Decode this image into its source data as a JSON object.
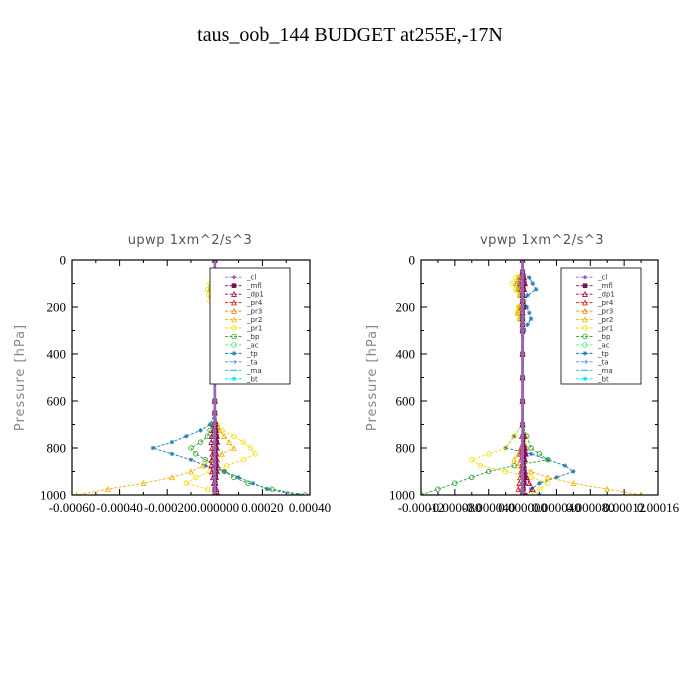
{
  "title": "taus_oob_144  BUDGET at255E,-17N",
  "chart_data": [
    {
      "type": "line",
      "title": "upwp   1xm^2/s^3",
      "ylabel": "Pressure [hPa]",
      "xlabel": "",
      "xlim": [
        -0.0006,
        0.0004
      ],
      "ylim": [
        1000,
        0
      ],
      "xticks": [
        "-0.00060",
        "-0.00040",
        "-0.00020",
        "0.000000",
        "0.00020",
        "0.00040"
      ],
      "xtick_values": [
        -0.0006,
        -0.0004,
        -0.0002,
        0.0,
        0.0002,
        0.0004
      ],
      "yticks": [
        0,
        200,
        400,
        600,
        800,
        1000
      ],
      "legend_position": "upper-right",
      "levels": [
        0,
        50,
        100,
        125,
        150,
        175,
        200,
        250,
        300,
        400,
        500,
        600,
        650,
        700,
        725,
        750,
        775,
        800,
        825,
        850,
        875,
        900,
        925,
        950,
        975,
        1000
      ],
      "series": [
        {
          "name": "_cl",
          "color": "#9467bd",
          "marker": "diamond",
          "values": [
            0,
            0,
            0,
            0,
            0,
            0,
            0,
            0,
            0,
            0,
            0,
            0,
            0,
            0,
            0,
            0,
            0,
            0,
            0,
            0,
            0,
            0,
            0,
            0,
            0,
            0
          ]
        },
        {
          "name": "_mfl",
          "color": "#7a0f4d",
          "marker": "square",
          "values": [
            0,
            0,
            3e-06,
            4e-06,
            3e-06,
            2e-06,
            1e-06,
            0,
            0,
            0,
            0,
            0,
            0,
            3e-06,
            5e-06,
            7e-06,
            7e-06,
            5e-06,
            3e-06,
            4e-06,
            6e-06,
            6e-06,
            4e-06,
            2e-06,
            0,
            0
          ]
        },
        {
          "name": "_dp1",
          "color": "#b0003a",
          "marker": "triangle",
          "values": [
            0,
            0,
            -5e-06,
            -8e-06,
            -6e-06,
            -4e-06,
            -2e-06,
            0,
            0,
            0,
            0,
            0,
            0,
            -5e-06,
            -8e-06,
            -1.2e-05,
            -1.5e-05,
            -1.2e-05,
            -1e-05,
            -1.3e-05,
            -1.5e-05,
            -1.2e-05,
            -8e-06,
            -4e-06,
            8e-06,
            1.5e-05
          ]
        },
        {
          "name": "_pr4",
          "color": "#d62728",
          "marker": "triangle",
          "values": [
            0,
            0,
            4e-06,
            6e-06,
            5e-06,
            3e-06,
            2e-06,
            0,
            0,
            0,
            0,
            0,
            0,
            4e-06,
            6e-06,
            1e-05,
            1.2e-05,
            1e-05,
            8e-06,
            1e-05,
            1.2e-05,
            1e-05,
            6e-06,
            3e-06,
            0,
            0
          ]
        },
        {
          "name": "_pr3",
          "color": "#ff7f0e",
          "marker": "triangle",
          "values": [
            0,
            0,
            0,
            0,
            0,
            0,
            0,
            0,
            0,
            0,
            0,
            0,
            0,
            0,
            0,
            0,
            0,
            0,
            0,
            0,
            0,
            0,
            0,
            0,
            0,
            0
          ]
        },
        {
          "name": "_pr2",
          "color": "#f4b400",
          "marker": "triangle",
          "values": [
            0,
            0,
            -1.5e-05,
            -2e-05,
            -1.5e-05,
            -1e-05,
            -5e-06,
            0,
            0,
            0,
            0,
            0,
            0,
            1e-05,
            2e-05,
            4e-05,
            6e-05,
            8e-05,
            3e-05,
            -1e-05,
            -5e-05,
            -0.0001,
            -0.00018,
            -0.0003,
            -0.00045,
            -0.00058
          ]
        },
        {
          "name": "_pr1",
          "color": "#f2e100",
          "marker": "circle",
          "values": [
            0,
            0,
            -2e-05,
            -3e-05,
            -2.5e-05,
            -2e-05,
            -1e-05,
            0,
            0,
            0,
            0,
            0,
            0,
            1e-05,
            3e-05,
            8e-05,
            0.00012,
            0.00015,
            0.00017,
            0.00012,
            5e-05,
            -2e-05,
            -8e-05,
            -0.00012,
            -3e-05,
            1e-05
          ]
        },
        {
          "name": "_bp",
          "color": "#2ca02c",
          "marker": "circle",
          "values": [
            0,
            0,
            -1e-05,
            -1.5e-05,
            -1.2e-05,
            -1e-05,
            -5e-06,
            0,
            0,
            0,
            0,
            0,
            0,
            -1e-05,
            -2e-05,
            -3e-05,
            -6e-05,
            -0.0001,
            -8e-05,
            -4e-05,
            0,
            4e-05,
            8e-05,
            0.00014,
            0.00024,
            0.00038
          ]
        },
        {
          "name": "_ac",
          "color": "#57e389",
          "marker": "circle",
          "values": [
            0,
            0,
            0,
            0,
            0,
            0,
            0,
            0,
            0,
            0,
            0,
            0,
            0,
            0,
            0,
            0,
            0,
            0,
            0,
            0,
            0,
            0,
            0,
            0,
            0,
            0
          ]
        },
        {
          "name": "_tp",
          "color": "#1f77b4",
          "marker": "star",
          "values": [
            0,
            0,
            4e-05,
            5e-05,
            4e-05,
            2e-05,
            -1e-05,
            0,
            0,
            0,
            0,
            0,
            0,
            -2e-05,
            -6e-05,
            -0.00012,
            -0.00018,
            -0.00026,
            -0.00018,
            -0.0001,
            -4e-05,
            4e-05,
            0.0001,
            0.00016,
            0.00022,
            0.00035
          ]
        },
        {
          "name": "_ta",
          "color": "#4a90d9",
          "marker": "arrow",
          "values": [
            0,
            0,
            0,
            0,
            0,
            0,
            0,
            0,
            0,
            0,
            0,
            0,
            0,
            0,
            0,
            0,
            0,
            0,
            0,
            0,
            0,
            0,
            0,
            0,
            0,
            0
          ]
        },
        {
          "name": "_ma",
          "color": "#17becf",
          "marker": "dash",
          "values": [
            0,
            0,
            0,
            0,
            0,
            0,
            0,
            0,
            0,
            0,
            0,
            0,
            0,
            0,
            0,
            0,
            0,
            0,
            0,
            0,
            0,
            0,
            0,
            0,
            0,
            0
          ]
        },
        {
          "name": "_bt",
          "color": "#00e5e5",
          "marker": "star",
          "values": [
            0,
            0,
            0,
            0,
            0,
            0,
            0,
            0,
            0,
            0,
            0,
            0,
            0,
            0,
            0,
            0,
            0,
            0,
            0,
            0,
            0,
            0,
            0,
            0,
            0,
            0
          ]
        }
      ]
    },
    {
      "type": "line",
      "title": "vpwp   1xm^2/s^3",
      "ylabel": "Pressure [hPa]",
      "xlabel": "",
      "xlim": [
        -0.00012,
        0.00016
      ],
      "ylim": [
        1000,
        0
      ],
      "xticks": [
        "-0.00012",
        "-0.000080",
        "-0.000040",
        "0.000000",
        "0.000040",
        "0.000080",
        "0.00012",
        "0.00016"
      ],
      "xtick_values": [
        -0.00012,
        -8e-05,
        -4e-05,
        0.0,
        4e-05,
        8e-05,
        0.00012,
        0.00016
      ],
      "yticks": [
        0,
        200,
        400,
        600,
        800,
        1000
      ],
      "legend_position": "upper-right",
      "levels": [
        0,
        50,
        75,
        100,
        125,
        150,
        175,
        200,
        225,
        250,
        275,
        300,
        400,
        500,
        600,
        700,
        750,
        800,
        825,
        850,
        875,
        900,
        925,
        950,
        975,
        1000
      ],
      "series": [
        {
          "name": "_cl",
          "color": "#9467bd",
          "marker": "diamond",
          "values": [
            0,
            0,
            0,
            0,
            0,
            0,
            0,
            0,
            0,
            0,
            0,
            0,
            0,
            0,
            0,
            0,
            0,
            0,
            0,
            0,
            0,
            0,
            0,
            0,
            0,
            0
          ]
        },
        {
          "name": "_mfl",
          "color": "#7a0f4d",
          "marker": "square",
          "values": [
            0,
            0,
            1e-06,
            2e-06,
            1e-06,
            0,
            0,
            1e-06,
            0,
            0,
            0,
            0,
            0,
            0,
            0,
            0,
            1e-06,
            2e-06,
            3e-06,
            2e-06,
            1e-06,
            2e-06,
            3e-06,
            2e-06,
            1e-06,
            0
          ]
        },
        {
          "name": "_dp1",
          "color": "#b0003a",
          "marker": "triangle",
          "values": [
            0,
            0,
            2e-06,
            3e-06,
            2e-06,
            1e-06,
            0,
            1e-06,
            0,
            0,
            0,
            0,
            0,
            0,
            0,
            0,
            2e-06,
            3e-06,
            4e-06,
            3e-06,
            2e-06,
            3e-06,
            5e-06,
            8e-06,
            1.2e-05,
            4e-06
          ]
        },
        {
          "name": "_pr4",
          "color": "#d62728",
          "marker": "triangle",
          "values": [
            0,
            0,
            -2e-06,
            -3e-06,
            -2e-06,
            0,
            0,
            -1e-06,
            0,
            0,
            0,
            0,
            0,
            0,
            0,
            0,
            -1e-06,
            -2e-06,
            -3e-06,
            -2e-06,
            -1e-06,
            -2e-06,
            -3e-06,
            -4e-06,
            -5e-06,
            0
          ]
        },
        {
          "name": "_pr3",
          "color": "#ff7f0e",
          "marker": "triangle",
          "values": [
            0,
            0,
            0,
            0,
            0,
            0,
            0,
            0,
            0,
            0,
            0,
            0,
            0,
            0,
            0,
            0,
            0,
            0,
            0,
            0,
            0,
            0,
            0,
            0,
            0,
            0
          ]
        },
        {
          "name": "_pr2",
          "color": "#f4b400",
          "marker": "triangle",
          "values": [
            0,
            0,
            -5e-06,
            -8e-06,
            -6e-06,
            -3e-06,
            0,
            -4e-06,
            -6e-06,
            -3e-06,
            0,
            0,
            0,
            0,
            0,
            0,
            3e-06,
            5e-06,
            -5e-06,
            -1e-05,
            -5e-06,
            1e-05,
            3e-05,
            6e-05,
            0.0001,
            0.00014
          ]
        },
        {
          "name": "_pr1",
          "color": "#f2e100",
          "marker": "circle",
          "values": [
            0,
            0,
            -8e-06,
            -1.2e-05,
            -8e-06,
            -4e-06,
            0,
            -5e-06,
            -6e-06,
            -4e-06,
            0,
            0,
            0,
            0,
            0,
            0,
            -1e-05,
            -2e-05,
            -4e-05,
            -6e-05,
            -5e-05,
            -2e-05,
            1e-05,
            3e-05,
            2e-05,
            1e-05
          ]
        },
        {
          "name": "_bp",
          "color": "#2ca02c",
          "marker": "circle",
          "values": [
            0,
            0,
            -4e-06,
            -6e-06,
            -4e-06,
            -2e-06,
            0,
            -3e-06,
            -4e-06,
            -2e-06,
            0,
            0,
            0,
            0,
            0,
            0,
            5e-06,
            1e-05,
            2e-05,
            3e-05,
            -1e-05,
            -4e-05,
            -6e-05,
            -8e-05,
            -0.0001,
            -0.00012
          ]
        },
        {
          "name": "_ac",
          "color": "#57e389",
          "marker": "circle",
          "values": [
            0,
            0,
            0,
            0,
            0,
            0,
            0,
            0,
            0,
            0,
            0,
            0,
            0,
            0,
            0,
            0,
            0,
            0,
            0,
            0,
            0,
            0,
            0,
            0,
            0,
            0
          ]
        },
        {
          "name": "_tp",
          "color": "#1f77b4",
          "marker": "star",
          "values": [
            0,
            0,
            8e-06,
            1.2e-05,
            1.6e-05,
            6e-06,
            2e-06,
            5e-06,
            8e-06,
            1e-05,
            6e-06,
            2e-06,
            0,
            0,
            0,
            0,
            -1e-05,
            -2e-05,
            1e-05,
            3e-05,
            5e-05,
            6e-05,
            4e-05,
            2e-05,
            1e-05,
            2e-05
          ]
        },
        {
          "name": "_ta",
          "color": "#4a90d9",
          "marker": "arrow",
          "values": [
            0,
            0,
            0,
            0,
            0,
            0,
            0,
            0,
            0,
            0,
            0,
            0,
            0,
            0,
            0,
            0,
            0,
            0,
            0,
            0,
            0,
            0,
            0,
            0,
            0,
            0
          ]
        },
        {
          "name": "_ma",
          "color": "#17becf",
          "marker": "dash",
          "values": [
            0,
            0,
            0,
            0,
            0,
            0,
            0,
            0,
            0,
            0,
            0,
            0,
            0,
            0,
            0,
            0,
            0,
            0,
            0,
            0,
            0,
            0,
            0,
            0,
            0,
            0
          ]
        },
        {
          "name": "_bt",
          "color": "#00e5e5",
          "marker": "star",
          "values": [
            0,
            0,
            0,
            0,
            0,
            0,
            0,
            0,
            0,
            0,
            0,
            0,
            0,
            0,
            0,
            0,
            0,
            0,
            0,
            0,
            0,
            0,
            0,
            0,
            0,
            0
          ]
        }
      ]
    }
  ]
}
